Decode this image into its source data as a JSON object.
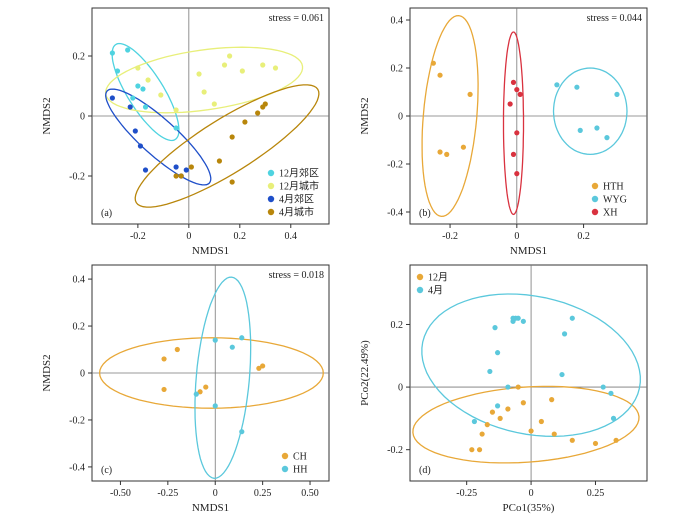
{
  "chart_data": [
    {
      "type": "scatter",
      "panel_label": "(a)",
      "title": "",
      "xlabel": "NMDS1",
      "ylabel": "NMDS2",
      "stress": "stress = 0.061",
      "xlim": [
        -0.38,
        0.55
      ],
      "ylim": [
        -0.36,
        0.36
      ],
      "xticks": [
        -0.2,
        0,
        0.2,
        0.4
      ],
      "xtick_labels": [
        "-0.2",
        "0",
        "0.2",
        "0.4"
      ],
      "yticks": [
        -0.2,
        0,
        0.2
      ],
      "ytick_labels": [
        "-0.2",
        "0",
        "0.2"
      ],
      "legend_position": "bottom-right",
      "series": [
        {
          "name": "12月郊区",
          "color": "#4fd3e0",
          "points": [
            [
              -0.3,
              0.21
            ],
            [
              -0.24,
              0.22
            ],
            [
              -0.28,
              0.15
            ],
            [
              -0.2,
              0.1
            ],
            [
              -0.17,
              0.03
            ],
            [
              -0.22,
              0.06
            ],
            [
              -0.18,
              0.09
            ],
            [
              -0.05,
              -0.04
            ]
          ],
          "ellipse": {
            "cx": -0.17,
            "cy": 0.08,
            "rx": 0.22,
            "ry": 0.06,
            "angle": -58
          }
        },
        {
          "name": "12月城市",
          "color": "#e8ef7a",
          "points": [
            [
              -0.2,
              0.16
            ],
            [
              -0.16,
              0.12
            ],
            [
              -0.11,
              0.07
            ],
            [
              -0.05,
              0.02
            ],
            [
              0.04,
              0.14
            ],
            [
              0.06,
              0.08
            ],
            [
              0.1,
              0.04
            ],
            [
              0.14,
              0.17
            ],
            [
              0.21,
              0.15
            ],
            [
              0.29,
              0.17
            ],
            [
              0.34,
              0.16
            ],
            [
              0.16,
              0.2
            ]
          ],
          "ellipse": {
            "cx": 0.06,
            "cy": 0.12,
            "rx": 0.39,
            "ry": 0.1,
            "angle": 8
          }
        },
        {
          "name": "4月郊区",
          "color": "#1f4fc9",
          "points": [
            [
              -0.3,
              0.06
            ],
            [
              -0.23,
              0.03
            ],
            [
              -0.21,
              -0.05
            ],
            [
              -0.19,
              -0.1
            ],
            [
              -0.17,
              -0.18
            ],
            [
              -0.05,
              -0.17
            ],
            [
              -0.03,
              -0.2
            ],
            [
              -0.01,
              -0.18
            ]
          ],
          "ellipse": {
            "cx": -0.12,
            "cy": -0.07,
            "rx": 0.27,
            "ry": 0.06,
            "angle": -42
          }
        },
        {
          "name": "4月城市",
          "color": "#b8860b",
          "points": [
            [
              -0.05,
              -0.2
            ],
            [
              -0.03,
              -0.2
            ],
            [
              0.01,
              -0.17
            ],
            [
              0.12,
              -0.15
            ],
            [
              0.17,
              -0.22
            ],
            [
              0.17,
              -0.07
            ],
            [
              0.22,
              -0.02
            ],
            [
              0.27,
              0.01
            ],
            [
              0.29,
              0.03
            ],
            [
              0.3,
              0.04
            ]
          ],
          "ellipse": {
            "cx": 0.15,
            "cy": -0.1,
            "rx": 0.42,
            "ry": 0.09,
            "angle": 32
          }
        }
      ]
    },
    {
      "type": "scatter",
      "panel_label": "(b)",
      "title": "",
      "xlabel": "NMDS1",
      "ylabel": "NMDS2",
      "stress": "stress = 0.044",
      "xlim": [
        -0.32,
        0.39
      ],
      "ylim": [
        -0.45,
        0.45
      ],
      "xticks": [
        -0.2,
        0,
        0.2
      ],
      "xtick_labels": [
        "-0.2",
        "0",
        "0.2"
      ],
      "yticks": [
        -0.4,
        -0.2,
        0,
        0.2,
        0.4
      ],
      "ytick_labels": [
        "-0.4",
        "-0.2",
        "0",
        "0.2",
        "0.4"
      ],
      "legend_position": "bottom-right",
      "series": [
        {
          "name": "HTH",
          "color": "#e8a838",
          "points": [
            [
              -0.25,
              0.22
            ],
            [
              -0.23,
              0.17
            ],
            [
              -0.14,
              0.09
            ],
            [
              -0.23,
              -0.15
            ],
            [
              -0.21,
              -0.16
            ],
            [
              -0.16,
              -0.13
            ]
          ],
          "ellipse": {
            "cx": -0.2,
            "cy": 0.0,
            "rx": 0.08,
            "ry": 0.42,
            "angle": -5
          }
        },
        {
          "name": "WYG",
          "color": "#5bc8dc",
          "points": [
            [
              0.12,
              0.13
            ],
            [
              0.18,
              0.12
            ],
            [
              0.3,
              0.09
            ],
            [
              0.19,
              -0.06
            ],
            [
              0.24,
              -0.05
            ],
            [
              0.27,
              -0.09
            ]
          ],
          "ellipse": {
            "cx": 0.22,
            "cy": 0.02,
            "rx": 0.11,
            "ry": 0.18,
            "angle": 0
          }
        },
        {
          "name": "XH",
          "color": "#d9323f",
          "points": [
            [
              -0.01,
              0.14
            ],
            [
              0.0,
              0.11
            ],
            [
              0.01,
              0.09
            ],
            [
              -0.02,
              0.05
            ],
            [
              0.0,
              -0.07
            ],
            [
              -0.01,
              -0.16
            ],
            [
              0.0,
              -0.24
            ]
          ],
          "ellipse": {
            "cx": -0.01,
            "cy": -0.03,
            "rx": 0.03,
            "ry": 0.38,
            "angle": 0
          }
        }
      ]
    },
    {
      "type": "scatter",
      "panel_label": "(c)",
      "title": "",
      "xlabel": "NMDS1",
      "ylabel": "NMDS2",
      "stress": "stress = 0.018",
      "xlim": [
        -0.65,
        0.6
      ],
      "ylim": [
        -0.46,
        0.46
      ],
      "xticks": [
        -0.5,
        -0.25,
        0,
        0.25,
        0.5
      ],
      "xtick_labels": [
        "-0.50",
        "-0.25",
        "0",
        "0.25",
        "0.50"
      ],
      "yticks": [
        -0.4,
        -0.2,
        0,
        0.2,
        0.4
      ],
      "ytick_labels": [
        "-0.4",
        "-0.2",
        "0",
        "0.2",
        "0.4"
      ],
      "legend_position": "bottom-right",
      "series": [
        {
          "name": "CH",
          "color": "#e8a838",
          "points": [
            [
              -0.27,
              0.06
            ],
            [
              -0.2,
              0.1
            ],
            [
              -0.27,
              -0.07
            ],
            [
              -0.05,
              -0.06
            ],
            [
              -0.08,
              -0.08
            ],
            [
              0.23,
              0.02
            ],
            [
              0.25,
              0.03
            ]
          ],
          "ellipse": {
            "cx": -0.02,
            "cy": 0.0,
            "rx": 0.59,
            "ry": 0.15,
            "angle": 0
          }
        },
        {
          "name": "HH",
          "color": "#5bc8dc",
          "points": [
            [
              0.0,
              0.14
            ],
            [
              0.14,
              0.15
            ],
            [
              0.09,
              0.11
            ],
            [
              -0.1,
              -0.09
            ],
            [
              0.0,
              -0.14
            ],
            [
              0.14,
              -0.25
            ]
          ],
          "ellipse": {
            "cx": 0.04,
            "cy": -0.02,
            "rx": 0.14,
            "ry": 0.43,
            "angle": -5
          }
        }
      ]
    },
    {
      "type": "scatter",
      "panel_label": "(d)",
      "title": "",
      "xlabel": "PCo1(35%)",
      "ylabel": "PCo2(22.49%)",
      "stress": "",
      "xlim": [
        -0.47,
        0.45
      ],
      "ylim": [
        -0.3,
        0.39
      ],
      "xticks": [
        -0.25,
        0,
        0.25
      ],
      "xtick_labels": [
        "-0.25",
        "0",
        "0.25"
      ],
      "yticks": [
        -0.2,
        0,
        0.2
      ],
      "ytick_labels": [
        "-0.2",
        "0",
        "0.2"
      ],
      "legend_position": "top-left",
      "series": [
        {
          "name": "12月",
          "color": "#e8a838",
          "points": [
            [
              -0.23,
              -0.2
            ],
            [
              -0.2,
              -0.2
            ],
            [
              -0.17,
              -0.12
            ],
            [
              -0.15,
              -0.08
            ],
            [
              -0.12,
              -0.1
            ],
            [
              -0.09,
              -0.07
            ],
            [
              -0.05,
              0.0
            ],
            [
              -0.03,
              -0.05
            ],
            [
              0.0,
              -0.14
            ],
            [
              0.04,
              -0.11
            ],
            [
              0.08,
              -0.04
            ],
            [
              0.09,
              -0.15
            ],
            [
              0.16,
              -0.17
            ],
            [
              0.25,
              -0.18
            ],
            [
              0.33,
              -0.17
            ],
            [
              -0.19,
              -0.15
            ]
          ],
          "ellipse": {
            "cx": -0.02,
            "cy": -0.12,
            "rx": 0.44,
            "ry": 0.12,
            "angle": 4
          }
        },
        {
          "name": "4月",
          "color": "#5bc8dc",
          "points": [
            [
              -0.07,
              0.21
            ],
            [
              -0.06,
              0.22
            ],
            [
              -0.05,
              0.22
            ],
            [
              -0.03,
              0.21
            ],
            [
              -0.07,
              0.22
            ],
            [
              0.16,
              0.22
            ],
            [
              -0.14,
              0.19
            ],
            [
              -0.13,
              0.11
            ],
            [
              0.13,
              0.17
            ],
            [
              0.12,
              0.04
            ],
            [
              -0.16,
              0.05
            ],
            [
              -0.09,
              0.0
            ],
            [
              0.28,
              0.0
            ],
            [
              0.31,
              -0.02
            ],
            [
              -0.22,
              -0.11
            ],
            [
              -0.13,
              -0.06
            ],
            [
              0.32,
              -0.1
            ]
          ],
          "ellipse": {
            "cx": 0.0,
            "cy": 0.07,
            "rx": 0.43,
            "ry": 0.22,
            "angle": -12
          }
        }
      ]
    }
  ]
}
